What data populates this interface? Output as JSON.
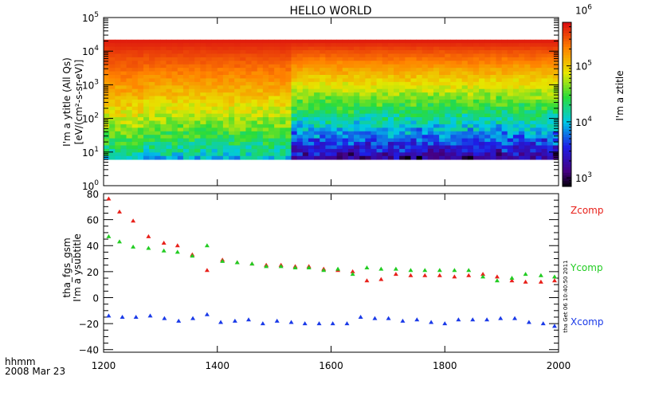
{
  "title": "HELLO WORLD",
  "chart_data": [
    {
      "type": "heatmap",
      "title": "HELLO WORLD",
      "ylabel_lines": [
        "[eV/(cm²-s-sr-eV)]",
        "I'm a ytitle (All Qs)"
      ],
      "y_scale": "log",
      "y_range": [
        1,
        100000
      ],
      "y_ticks": [
        {
          "value": 1,
          "mant": "10",
          "exp": "0"
        },
        {
          "value": 10,
          "mant": "10",
          "exp": "1"
        },
        {
          "value": 100,
          "mant": "10",
          "exp": "2"
        },
        {
          "value": 1000,
          "mant": "10",
          "exp": "3"
        },
        {
          "value": 10000,
          "mant": "10",
          "exp": "4"
        },
        {
          "value": 100000,
          "mant": "10",
          "exp": "5"
        }
      ],
      "x_range": [
        1200,
        2000
      ],
      "data_y_range": [
        6,
        22000
      ],
      "colorbar": {
        "title": "I'm a ztitle",
        "scale": "log",
        "range": [
          700,
          600000
        ],
        "ticks": [
          {
            "value": 1000,
            "mant": "10",
            "exp": "3"
          },
          {
            "value": 10000,
            "mant": "10",
            "exp": "4"
          },
          {
            "value": 100000,
            "mant": "10",
            "exp": "5"
          },
          {
            "value": 1000000,
            "mant": "10",
            "exp": "6"
          }
        ]
      },
      "grid": false
    },
    {
      "type": "scatter",
      "ylabel_lines": [
        "tha_fgs_gsm",
        "I'm a ysubtitle"
      ],
      "x_range": [
        1200,
        2000
      ],
      "y_range": [
        -42,
        80
      ],
      "x_ticks": [
        "1200",
        "1400",
        "1600",
        "1800",
        "2000"
      ],
      "x_tick_values": [
        1200,
        1400,
        1600,
        1800,
        2000
      ],
      "y_ticks": [
        "−40",
        "−20",
        "0",
        "20",
        "40",
        "60",
        "80"
      ],
      "y_tick_values": [
        -40,
        -20,
        0,
        20,
        40,
        60,
        80
      ],
      "marker": "triangle",
      "legend_placement": "right, outside plot",
      "series": [
        {
          "name": "Zcomp",
          "color": "#e8201a",
          "x": [
            1209,
            1228,
            1252,
            1279,
            1306,
            1330,
            1356,
            1382,
            1409,
            1435,
            1461,
            1486,
            1512,
            1537,
            1561,
            1587,
            1612,
            1638,
            1663,
            1688,
            1714,
            1740,
            1765,
            1791,
            1817,
            1842,
            1867,
            1892,
            1918,
            1942,
            1969,
            1993
          ],
          "y": [
            76,
            66,
            59,
            47,
            42,
            40,
            33,
            21,
            29,
            27,
            26,
            25,
            25,
            24,
            24,
            22,
            21,
            20,
            13,
            14,
            18,
            17,
            17,
            17,
            16,
            17,
            18,
            16,
            13,
            12,
            12,
            13
          ]
        },
        {
          "name": "Ycomp",
          "color": "#22cc22",
          "x": [
            1209,
            1228,
            1252,
            1279,
            1306,
            1330,
            1356,
            1382,
            1409,
            1435,
            1461,
            1486,
            1512,
            1537,
            1561,
            1587,
            1612,
            1638,
            1663,
            1688,
            1714,
            1740,
            1765,
            1791,
            1817,
            1842,
            1867,
            1892,
            1918,
            1942,
            1969,
            1993
          ],
          "y": [
            47,
            43,
            39,
            38,
            36,
            35,
            32,
            40,
            28,
            27,
            26,
            24,
            24,
            23,
            23,
            21,
            22,
            18,
            23,
            22,
            22,
            21,
            21,
            21,
            21,
            21,
            16,
            13,
            15,
            18,
            17,
            16
          ]
        },
        {
          "name": "Xcomp",
          "color": "#1a3ae8",
          "x": [
            1209,
            1233,
            1257,
            1282,
            1307,
            1332,
            1357,
            1382,
            1406,
            1431,
            1455,
            1480,
            1505,
            1530,
            1554,
            1579,
            1603,
            1628,
            1652,
            1677,
            1701,
            1726,
            1751,
            1776,
            1800,
            1824,
            1849,
            1874,
            1898,
            1923,
            1948,
            1973,
            1993
          ],
          "y": [
            -14,
            -15,
            -15,
            -14,
            -16,
            -18,
            -16,
            -13,
            -19,
            -18,
            -17,
            -20,
            -18,
            -19,
            -20,
            -20,
            -20,
            -20,
            -15,
            -16,
            -16,
            -18,
            -17,
            -19,
            -20,
            -17,
            -17,
            -17,
            -16,
            -16,
            -19,
            -20,
            -22
          ]
        }
      ]
    }
  ],
  "time_label": [
    "hhmm",
    "2008 Mar 23"
  ],
  "timestamp": "tha Get 06 10:40:50 2011"
}
